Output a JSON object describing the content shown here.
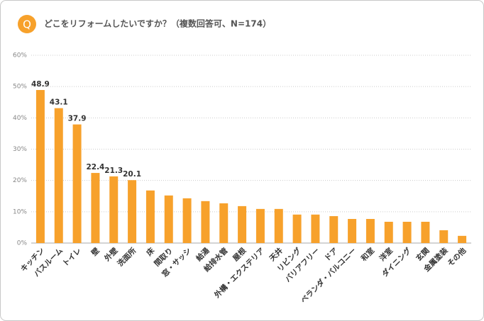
{
  "badge": "Q",
  "chart_data": {
    "type": "bar",
    "title": "どこをリフォームしたいですか？（複数回答可、N=174）",
    "categories": [
      "キッチン",
      "バスルーム",
      "トイレ",
      "壁",
      "外壁",
      "洗面所",
      "床",
      "間取り",
      "窓・サッシ",
      "給湯",
      "給排水管",
      "屋根",
      "外構・エクステリア",
      "天井",
      "リビング",
      "バリアフリー",
      "ドア",
      "ベランダ・バルコニー",
      "和室",
      "洋室",
      "ダイニング",
      "玄関",
      "金属塗装",
      "その他"
    ],
    "values": [
      48.9,
      43.1,
      37.9,
      22.4,
      21.3,
      20.1,
      16.8,
      15.2,
      14.3,
      13.4,
      12.7,
      11.8,
      10.9,
      10.9,
      9.1,
      9.1,
      8.6,
      7.7,
      7.7,
      6.8,
      6.8,
      6.8,
      4.1,
      2.3
    ],
    "value_labels": [
      "48.9",
      "43.1",
      "37.9",
      "22.4",
      "21.3",
      "20.1",
      null,
      null,
      null,
      null,
      null,
      null,
      null,
      null,
      null,
      null,
      null,
      null,
      null,
      null,
      null,
      null,
      null,
      null
    ],
    "color": "#f7a12b",
    "ylim": [
      0,
      60
    ],
    "yticks": [
      {
        "value": 0,
        "label": "0%"
      },
      {
        "value": 10,
        "label": "10%"
      },
      {
        "value": 20,
        "label": "20%"
      },
      {
        "value": 30,
        "label": "30%"
      },
      {
        "value": 40,
        "label": "40%"
      },
      {
        "value": 50,
        "label": "50%"
      },
      {
        "value": 60,
        "label": "60%"
      }
    ],
    "grid": true
  }
}
